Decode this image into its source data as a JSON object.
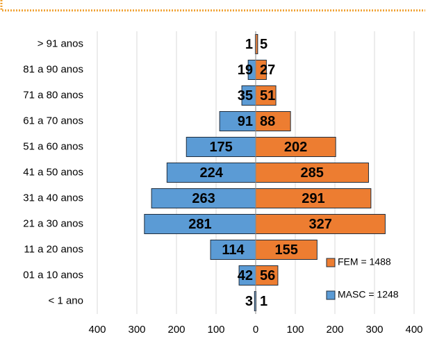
{
  "chart_data": {
    "type": "population_pyramid",
    "categories": [
      "> 91 anos",
      "81 a 90 anos",
      "71 a 80 anos",
      "61 a 70 anos",
      "51 a 60 anos",
      "41 a 50 anos",
      "31 a 40 anos",
      "21 a 30 anos",
      "11 a 20 anos",
      "01 a 10 anos",
      "< 1 ano"
    ],
    "series": [
      {
        "name": "MASC = 1248",
        "color": "#5b9bd5",
        "values": [
          1,
          19,
          35,
          91,
          175,
          224,
          263,
          281,
          114,
          42,
          3
        ]
      },
      {
        "name": "FEM = 1488",
        "color": "#ed7d31",
        "values": [
          5,
          27,
          51,
          88,
          202,
          285,
          291,
          327,
          155,
          56,
          1
        ]
      }
    ],
    "xlim": [
      -400,
      400
    ],
    "xticks": [
      {
        "value": -400,
        "label": "400"
      },
      {
        "value": -300,
        "label": "300"
      },
      {
        "value": -200,
        "label": "200"
      },
      {
        "value": -100,
        "label": "100"
      },
      0,
      100,
      200,
      300,
      400
    ],
    "grid": true,
    "legend": "lower right"
  }
}
